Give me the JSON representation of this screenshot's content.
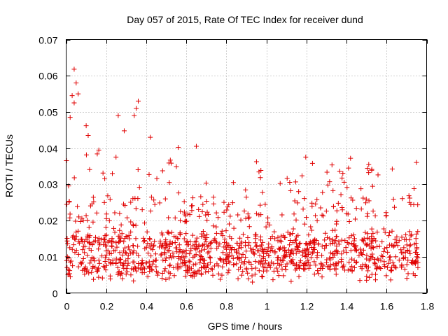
{
  "chart_data": {
    "type": "scatter",
    "title": "Day 057 of 2015, Rate Of TEC Index for receiver dund",
    "xlabel": "GPS time / hours",
    "ylabel": "ROTI / TECUs",
    "xlim": [
      0,
      1.8
    ],
    "ylim": [
      0,
      0.07
    ],
    "x_ticks": [
      0,
      0.2,
      0.4,
      0.6,
      0.8,
      1,
      1.2,
      1.4,
      1.6,
      1.8
    ],
    "x_tick_labels": [
      "0",
      "0.2",
      "0.4",
      "0.6",
      "0.8",
      "1",
      "1.2",
      "1.4",
      "1.6",
      "1.8"
    ],
    "y_ticks": [
      0,
      0.01,
      0.02,
      0.03,
      0.04,
      0.05,
      0.06,
      0.07
    ],
    "y_tick_labels": [
      "0",
      "0.01",
      "0.02",
      "0.03",
      "0.04",
      "0.05",
      "0.06",
      "0.07"
    ],
    "grid": true,
    "marker": "+",
    "color": "#e00000",
    "series": [
      {
        "name": "ROTI",
        "x_range": [
          0,
          1.76
        ],
        "baseline_band": [
          0.005,
          0.016
        ],
        "notable_points": [
          {
            "x": 0.04,
            "y": 0.0618
          },
          {
            "x": 0.05,
            "y": 0.058
          },
          {
            "x": 0.06,
            "y": 0.055
          },
          {
            "x": 0.03,
            "y": 0.0545
          },
          {
            "x": 0.04,
            "y": 0.0525
          },
          {
            "x": 0.02,
            "y": 0.0485
          },
          {
            "x": 0.36,
            "y": 0.053
          },
          {
            "x": 0.35,
            "y": 0.051
          },
          {
            "x": 0.34,
            "y": 0.049
          },
          {
            "x": 0.26,
            "y": 0.049
          },
          {
            "x": 0.29,
            "y": 0.0448
          },
          {
            "x": 0.1,
            "y": 0.0462
          },
          {
            "x": 0.11,
            "y": 0.0435
          },
          {
            "x": 0.42,
            "y": 0.043
          },
          {
            "x": 0.56,
            "y": 0.0402
          },
          {
            "x": 0.65,
            "y": 0.0405
          },
          {
            "x": 1.42,
            "y": 0.0372
          },
          {
            "x": 1.41,
            "y": 0.0345
          },
          {
            "x": 1.23,
            "y": 0.0358
          },
          {
            "x": 0.93,
            "y": 0.003
          },
          {
            "x": 1.5,
            "y": 0.0035
          }
        ]
      }
    ]
  }
}
